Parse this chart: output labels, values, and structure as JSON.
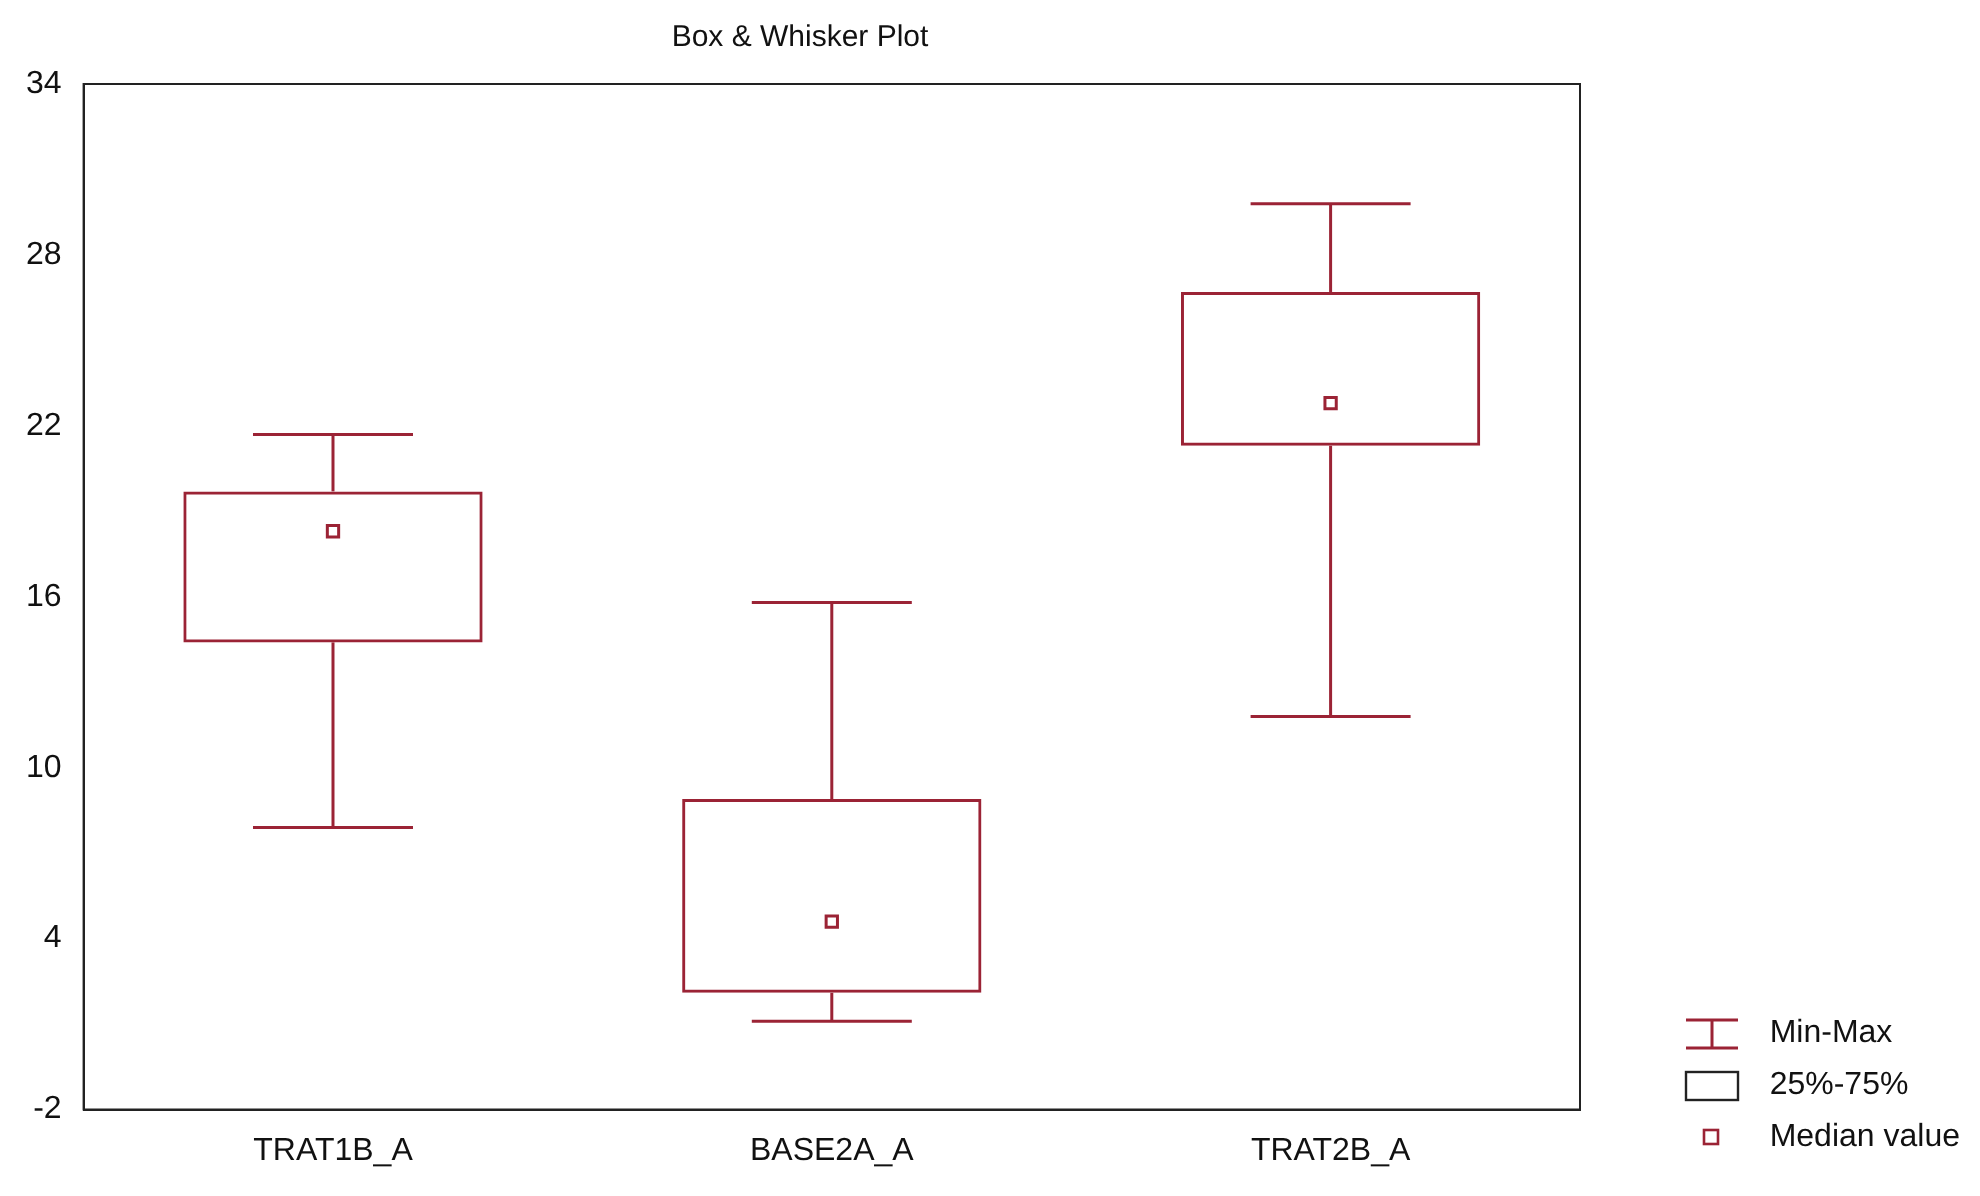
{
  "chart_data": {
    "type": "box",
    "title": "Box & Whisker Plot",
    "categories": [
      "TRAT1B_A",
      "BASE2A_A",
      "TRAT2B_A"
    ],
    "color": "#9b2335",
    "boxes": [
      {
        "low": 7.9,
        "q1": 14.4,
        "median": 18.3,
        "q3": 19.7,
        "high": 21.7
      },
      {
        "low": 1.1,
        "q1": 2.1,
        "median": 4.6,
        "q3": 8.9,
        "high": 15.8
      },
      {
        "low": 11.8,
        "q1": 21.3,
        "median": 22.8,
        "q3": 26.7,
        "high": 29.8
      }
    ],
    "ylim": [
      -2,
      34
    ],
    "yticks": [
      -2,
      4,
      10,
      16,
      22,
      28,
      34
    ],
    "grid": false,
    "marker": "square",
    "annotations": [
      "Min-Max",
      "25%-75%",
      "Median value"
    ]
  }
}
